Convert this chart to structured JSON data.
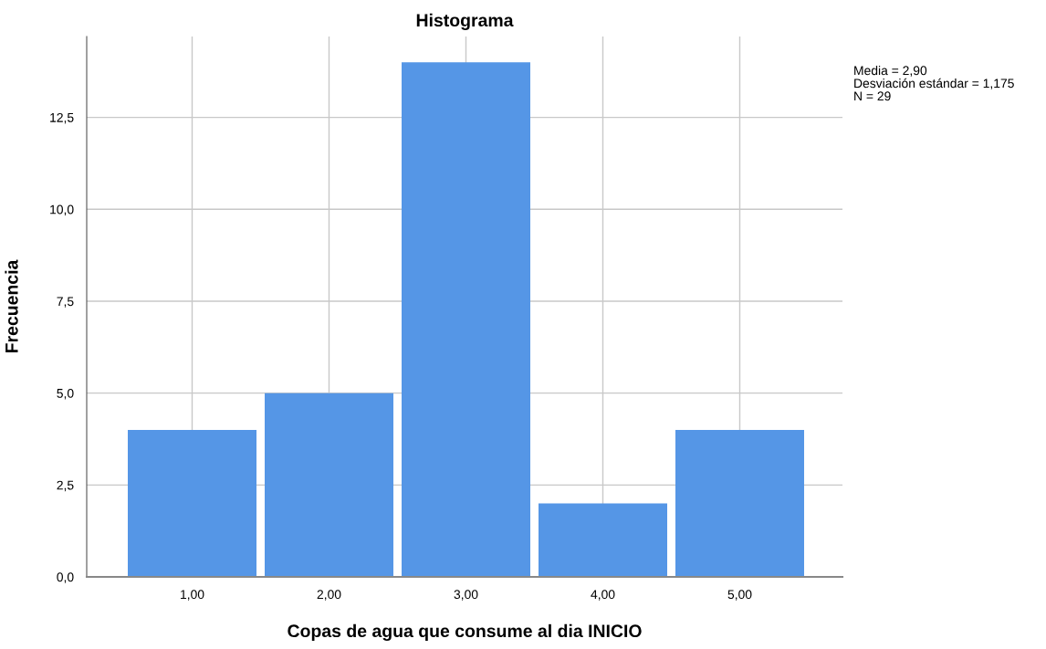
{
  "chart_data": {
    "type": "histogram",
    "title": "Histograma",
    "xlabel": "Copas de agua que consume al dia INICIO",
    "ylabel": "Frecuencia",
    "bins": [
      0.5,
      1.5,
      2.5,
      3.5,
      4.5,
      5.5
    ],
    "values": [
      4,
      5,
      14,
      2,
      4
    ],
    "color": "#5596e6",
    "xlim": [
      0.23,
      5.75
    ],
    "ylim": [
      0,
      14.7
    ],
    "xticks": [
      {
        "value": 1,
        "label": "1,00"
      },
      {
        "value": 2,
        "label": "2,00"
      },
      {
        "value": 3,
        "label": "3,00"
      },
      {
        "value": 4,
        "label": "4,00"
      },
      {
        "value": 5,
        "label": "5,00"
      }
    ],
    "yticks": [
      {
        "value": 0,
        "label": "0,0"
      },
      {
        "value": 2.5,
        "label": "2,5"
      },
      {
        "value": 5,
        "label": "5,0"
      },
      {
        "value": 7.5,
        "label": "7,5"
      },
      {
        "value": 10,
        "label": "10,0"
      },
      {
        "value": 12.5,
        "label": "12,5"
      }
    ],
    "grid": true,
    "annotations": [
      "Media = 2,90",
      "Desviación estándar = 1,175",
      "N = 29"
    ]
  }
}
